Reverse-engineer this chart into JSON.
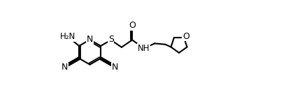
{
  "background_color": "#ffffff",
  "line_color": "#000000",
  "line_width": 1.5,
  "font_size": 8.5,
  "figsize": [
    4.22,
    1.58
  ],
  "dpi": 100,
  "xlim": [
    0,
    11
  ],
  "ylim": [
    -2.2,
    3.5
  ]
}
